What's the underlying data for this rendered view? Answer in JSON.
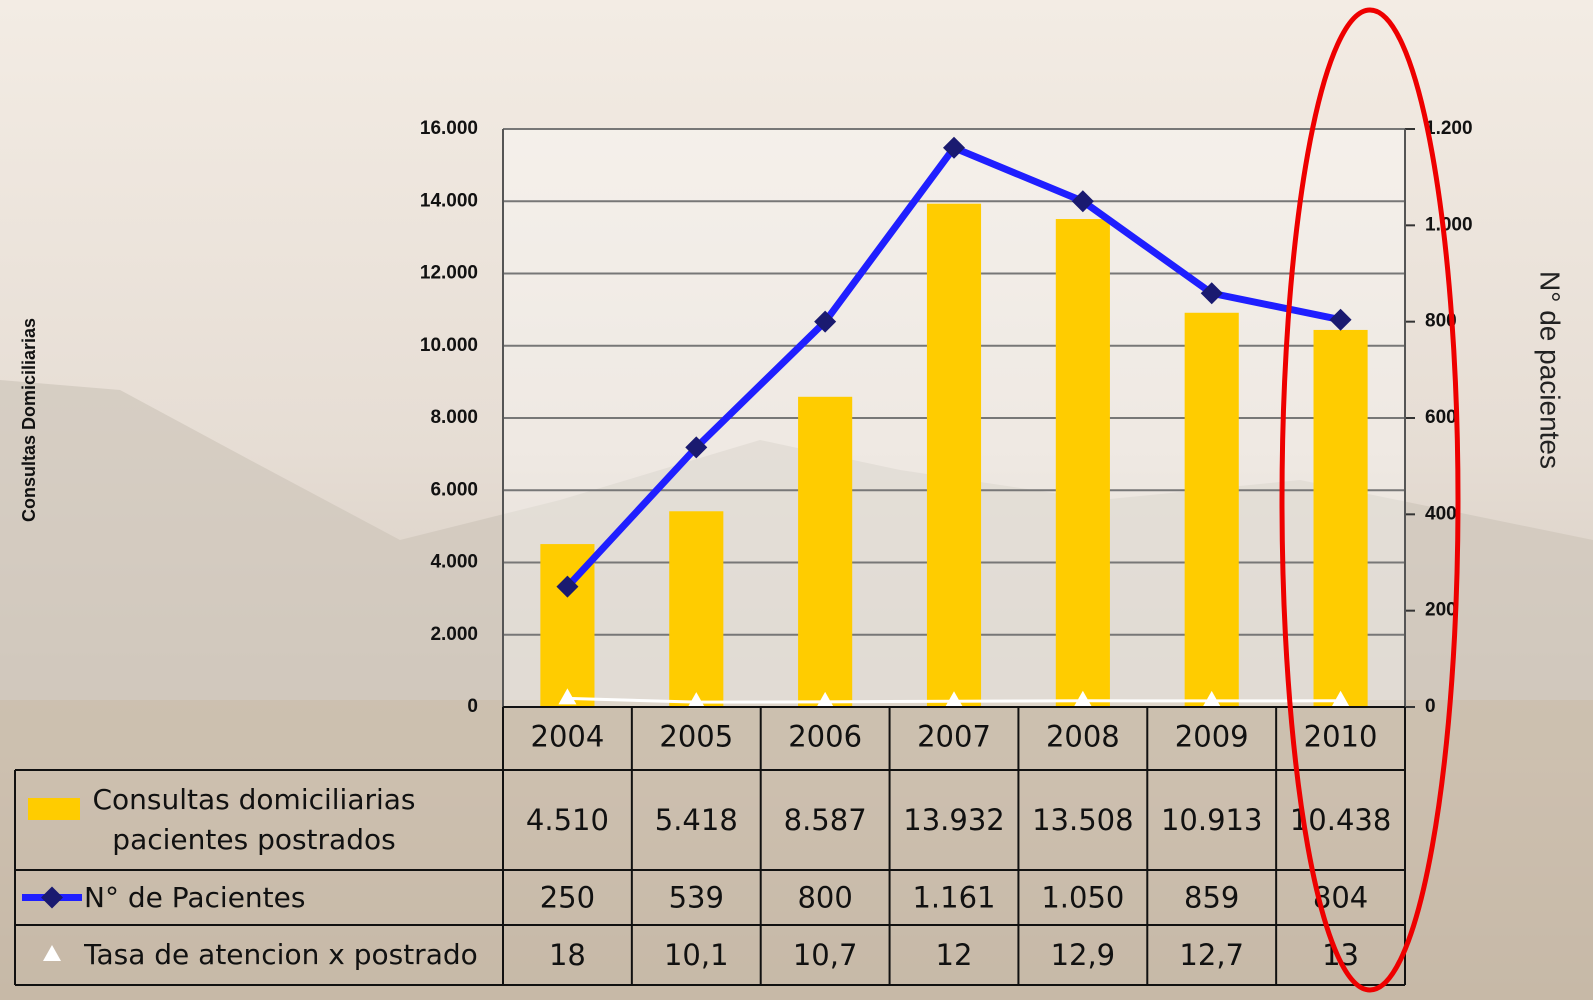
{
  "chart_data": {
    "type": "bar",
    "y_axis_label": "Consultas Domiciliarias",
    "y2_axis_label": "N° de pacientes",
    "categories": [
      "2004",
      "2005",
      "2006",
      "2007",
      "2008",
      "2009",
      "2010"
    ],
    "ylim": [
      0,
      16000
    ],
    "yticks": [
      0,
      {
        "value": 2000,
        "label": "2.000"
      },
      {
        "value": 4000,
        "label": "4.000"
      },
      {
        "value": 6000,
        "label": "6.000"
      },
      {
        "value": 8000,
        "label": "8.000"
      },
      {
        "value": 10000,
        "label": "10.000"
      },
      {
        "value": 12000,
        "label": "12.000"
      },
      {
        "value": 14000,
        "label": "14.000"
      },
      {
        "value": 16000,
        "label": "16.000"
      }
    ],
    "y2lim": [
      0,
      1200
    ],
    "y2ticks": [
      0,
      200,
      400,
      600,
      800,
      {
        "value": 1000,
        "label": "1.000"
      },
      {
        "value": 1200,
        "label": "1.200"
      }
    ],
    "grid": true,
    "series": [
      {
        "name": "Consultas domiciliarias pacientes postrados",
        "type": "bar",
        "color": "#ffcc00",
        "values": [
          4510,
          5418,
          8587,
          13932,
          13508,
          10913,
          10438
        ],
        "value_labels": [
          "4.510",
          "5.418",
          "8.587",
          "13.932",
          "13.508",
          "10.913",
          "10.438"
        ]
      },
      {
        "name": "N° de Pacientes",
        "type": "line",
        "axis": "y2",
        "color": "#1f1fff",
        "values": [
          250,
          539,
          800,
          1161,
          1050,
          859,
          804
        ],
        "value_labels": [
          "250",
          "539",
          "800",
          "1.161",
          "1.050",
          "859",
          "804"
        ]
      },
      {
        "name": "Tasa de atencion x postrado",
        "type": "line",
        "axis": "y2",
        "color": "#ffffff",
        "values": [
          18,
          10.1,
          10.7,
          12,
          12.9,
          12.7,
          13
        ],
        "value_labels": [
          "18",
          "10,1",
          "10,7",
          "12",
          "12,9",
          "12,7",
          "13"
        ]
      }
    ]
  }
}
